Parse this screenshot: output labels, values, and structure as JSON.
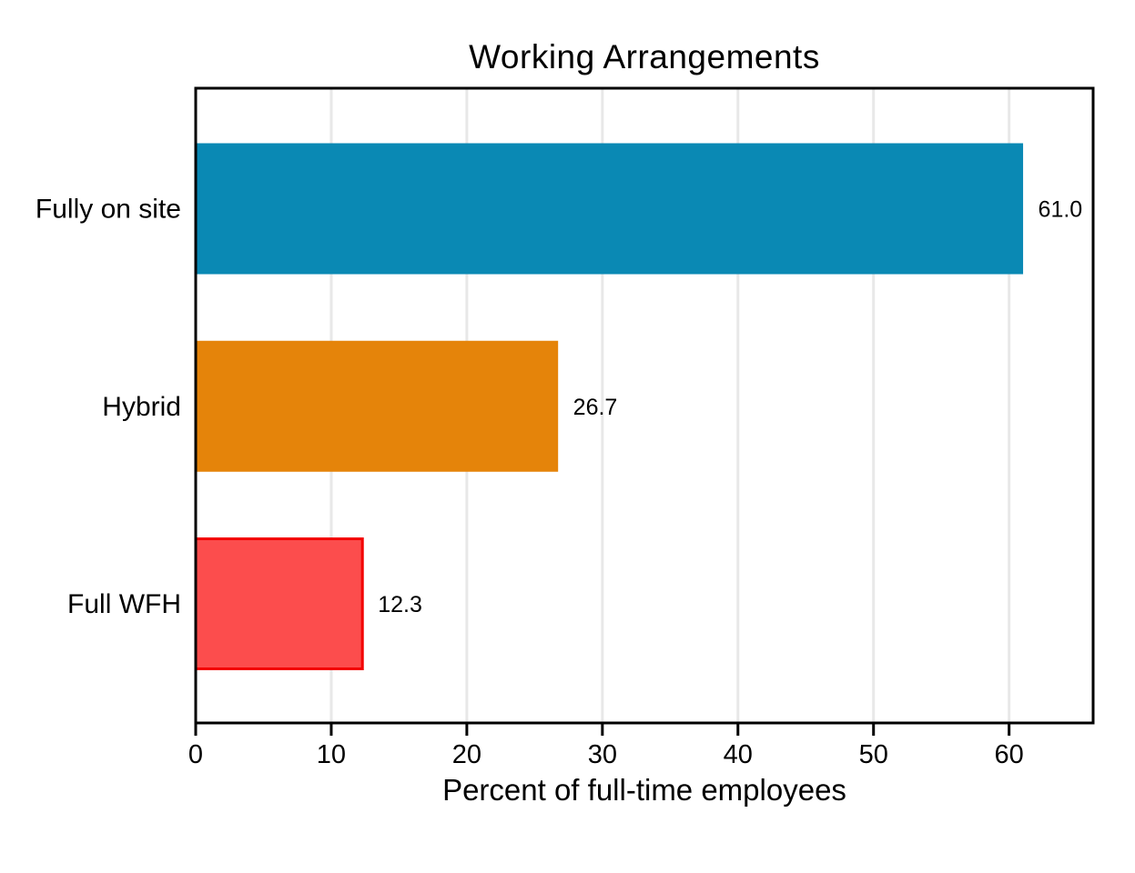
{
  "chart_data": {
    "type": "bar",
    "orientation": "horizontal",
    "title": "Working Arrangements",
    "xlabel": "Percent of full-time employees",
    "ylabel": "",
    "categories": [
      "Fully on site",
      "Hybrid",
      "Full WFH"
    ],
    "values": [
      61.0,
      26.7,
      12.3
    ],
    "value_labels": [
      "61.0",
      "26.7",
      "12.3"
    ],
    "bar_colors": [
      "#0a89b4",
      "#e5840a",
      "#fc4d4d"
    ],
    "bar_edge_colors": [
      "#0a89b4",
      "#e5840a",
      "#f30000"
    ],
    "xlim": [
      0,
      66.2
    ],
    "xticks": [
      0,
      10,
      20,
      30,
      40,
      50,
      60
    ],
    "grid": true,
    "gridline_color": "#e8e8e8",
    "frame_color": "#000000",
    "text_color": "#000000",
    "background": "#ffffff",
    "legend": "none"
  }
}
